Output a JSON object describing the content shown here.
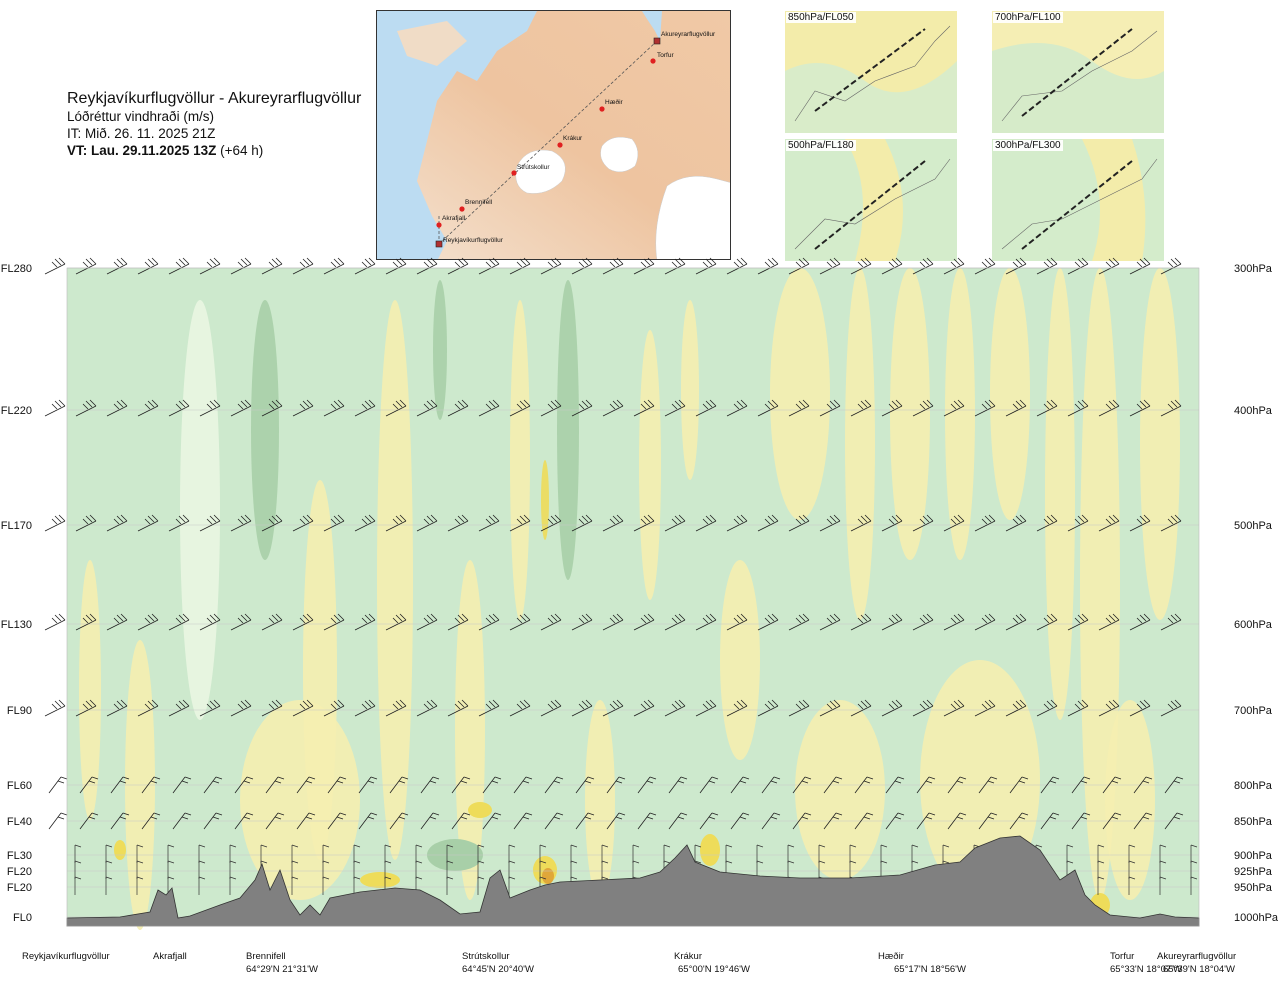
{
  "header": {
    "route": "Reykjavíkurflugvöllur - Akureyrarflugvöllur",
    "variable": "Lóðréttur vindhraði (m/s)",
    "issue_time": "IT: Mið. 26. 11. 2025 21Z",
    "valid_time_bold": "VT: Lau. 29.11.2025 13Z",
    "valid_time_rest": "(+64 h)"
  },
  "route_map": {
    "points": [
      {
        "name": "Akureyrarflugvöllur"
      },
      {
        "name": "Torfur"
      },
      {
        "name": "Hæðir"
      },
      {
        "name": "Krákur"
      },
      {
        "name": "Strútskollur"
      },
      {
        "name": "Brennifell"
      },
      {
        "name": "Akrafjall"
      },
      {
        "name": "Reykjavíkurflugvöllur"
      }
    ]
  },
  "mini_maps": [
    {
      "label": "850hPa/FL050"
    },
    {
      "label": "700hPa/FL100"
    },
    {
      "label": "500hPa/FL180"
    },
    {
      "label": "300hPa/FL300"
    }
  ],
  "chart_data": {
    "type": "heatmap",
    "title": "Reykjavíkurflugvöllur - Akureyrarflugvöllur",
    "variable": "Lóðréttur vindhraði (m/s)",
    "left_axis_labels": [
      "FL280",
      "FL220",
      "FL170",
      "FL130",
      "FL90",
      "FL60",
      "FL40",
      "FL30",
      "FL20",
      "FL20",
      "FL0"
    ],
    "right_axis_labels": [
      "300hPa",
      "400hPa",
      "500hPa",
      "600hPa",
      "700hPa",
      "800hPa",
      "850hPa",
      "900hPa",
      "925hPa",
      "950hPa",
      "1000hPa"
    ],
    "pressure_levels_hPa": [
      300,
      400,
      500,
      600,
      700,
      800,
      850,
      900,
      925,
      950,
      1000
    ],
    "locations": [
      {
        "name": "Reykjavíkurflugvöllur",
        "coord": ""
      },
      {
        "name": "Akrafjall",
        "coord": ""
      },
      {
        "name": "Brennifell",
        "coord": "64°29'N 21°31'W"
      },
      {
        "name": "Strútskollur",
        "coord": "64°45'N 20°40'W"
      },
      {
        "name": "Krákur",
        "coord": "65°00'N 19°46'W"
      },
      {
        "name": "Hæðir",
        "coord": "65°17'N 18°56'W"
      },
      {
        "name": "Torfur",
        "coord": "65°33'N 18°07'W"
      },
      {
        "name": "Akureyrarflugvöllur",
        "coord": "65°39'N 18°04'W"
      }
    ],
    "colors": {
      "strong_down": "#a8cfa8",
      "down": "#cde9cd",
      "weak_down": "#eaf6e2",
      "neutral": "#fdfbe6",
      "weak_up": "#f5eeb0",
      "up": "#eedc5a",
      "strong_up": "#e0a73a",
      "terrain": "#808080"
    }
  }
}
